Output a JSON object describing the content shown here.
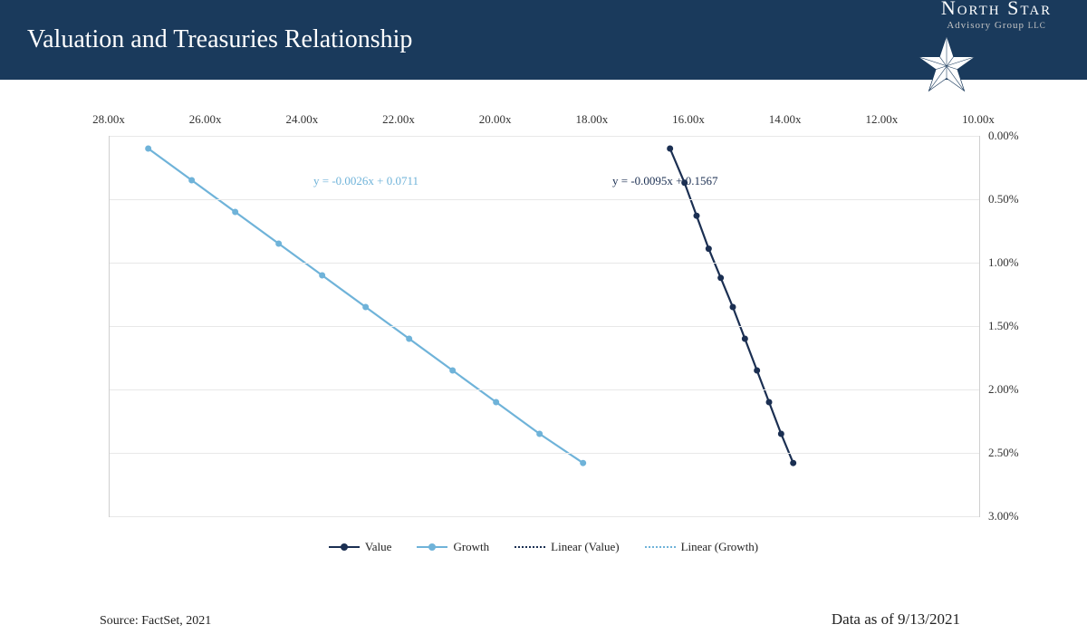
{
  "header": {
    "title": "Valuation and Treasuries Relationship",
    "bg": "#1a3a5c"
  },
  "logo": {
    "line1": "North Star",
    "line2": "Advisory Group",
    "suffix": "LLC",
    "star_fill": "#ffffff",
    "star_stroke": "#1a3a5c"
  },
  "chart": {
    "type": "line",
    "x_axis": {
      "label_suffix": "x",
      "min": 28.0,
      "max": 10.0,
      "ticks": [
        28.0,
        26.0,
        24.0,
        22.0,
        20.0,
        18.0,
        16.0,
        14.0,
        12.0,
        10.0
      ],
      "tick_fontsize": 13,
      "reversed": true
    },
    "y_axis": {
      "label_suffix": "%",
      "min": 0.0,
      "max": 3.0,
      "ticks": [
        0.0,
        0.5,
        1.0,
        1.5,
        2.0,
        2.5,
        3.0
      ],
      "tick_fontsize": 13,
      "reversed": true,
      "position": "right"
    },
    "grid_color": "#e8e8e8",
    "border_color": "#cfcfcf",
    "background": "#ffffff",
    "series": [
      {
        "name": "Value",
        "color": "#1b2f52",
        "line_width": 2.2,
        "marker": "circle",
        "marker_size": 7,
        "equation": "y = -0.0095x + 0.1567",
        "eq_color": "#1b2f52",
        "eq_x": 555,
        "eq_y": 42,
        "points": [
          {
            "x": 16.4,
            "y": 0.1
          },
          {
            "x": 16.1,
            "y": 0.37
          },
          {
            "x": 15.85,
            "y": 0.63
          },
          {
            "x": 15.6,
            "y": 0.89
          },
          {
            "x": 15.35,
            "y": 1.12
          },
          {
            "x": 15.1,
            "y": 1.35
          },
          {
            "x": 14.85,
            "y": 1.6
          },
          {
            "x": 14.6,
            "y": 1.85
          },
          {
            "x": 14.35,
            "y": 2.1
          },
          {
            "x": 14.1,
            "y": 2.35
          },
          {
            "x": 13.85,
            "y": 2.58
          }
        ]
      },
      {
        "name": "Growth",
        "color": "#6fb3d9",
        "line_width": 2.2,
        "marker": "circle",
        "marker_size": 7,
        "equation": "y = -0.0026x + 0.0711",
        "eq_color": "#6fb3d9",
        "eq_x": 225,
        "eq_y": 42,
        "points": [
          {
            "x": 27.2,
            "y": 0.1
          },
          {
            "x": 26.3,
            "y": 0.35
          },
          {
            "x": 25.4,
            "y": 0.6
          },
          {
            "x": 24.5,
            "y": 0.85
          },
          {
            "x": 23.6,
            "y": 1.1
          },
          {
            "x": 22.7,
            "y": 1.35
          },
          {
            "x": 21.8,
            "y": 1.6
          },
          {
            "x": 20.9,
            "y": 1.85
          },
          {
            "x": 20.0,
            "y": 2.1
          },
          {
            "x": 19.1,
            "y": 2.35
          },
          {
            "x": 18.2,
            "y": 2.58
          }
        ]
      }
    ],
    "trendlines": [
      {
        "name": "Linear (Value)",
        "color": "#1b2f52",
        "style": "dotted",
        "width": 1.5
      },
      {
        "name": "Linear (Growth)",
        "color": "#6fb3d9",
        "style": "dotted",
        "width": 1.5
      }
    ],
    "legend": {
      "items": [
        {
          "label": "Value",
          "kind": "line-marker",
          "color": "#1b2f52"
        },
        {
          "label": "Growth",
          "kind": "line-marker",
          "color": "#6fb3d9"
        },
        {
          "label": "Linear (Value)",
          "kind": "dotted",
          "color": "#1b2f52"
        },
        {
          "label": "Linear (Growth)",
          "kind": "dotted",
          "color": "#6fb3d9"
        }
      ],
      "fontsize": 13
    }
  },
  "footer": {
    "source": "Source: FactSet, 2021",
    "asof": "Data as of 9/13/2021"
  }
}
